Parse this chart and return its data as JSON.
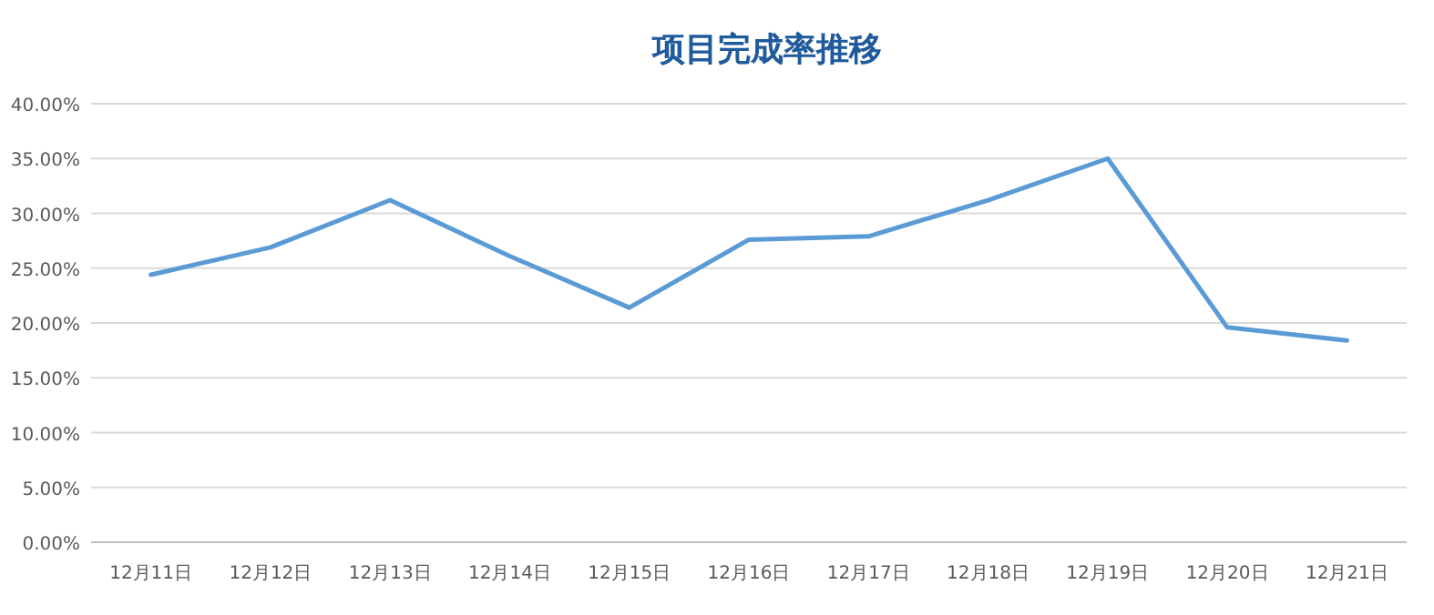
{
  "chart_data": {
    "type": "line",
    "title": "项目完成率推移",
    "categories": [
      "12月11日",
      "12月12日",
      "12月13日",
      "12月14日",
      "12月15日",
      "12月16日",
      "12月17日",
      "12月18日",
      "12月19日",
      "12月20日",
      "12月21日"
    ],
    "series": [
      {
        "color": "#5b9bd5",
        "values": [
          24.4,
          26.9,
          31.2,
          26.1,
          21.4,
          27.6,
          27.9,
          31.2,
          35.0,
          19.6,
          18.4
        ]
      }
    ],
    "ylim": [
      0,
      40
    ],
    "yticks": [
      {
        "value": 0,
        "label": "0.00%"
      },
      {
        "value": 5,
        "label": "5.00%"
      },
      {
        "value": 10,
        "label": "10.00%"
      },
      {
        "value": 15,
        "label": "15.00%"
      },
      {
        "value": 20,
        "label": "20.00%"
      },
      {
        "value": 25,
        "label": "25.00%"
      },
      {
        "value": 30,
        "label": "30.00%"
      },
      {
        "value": 35,
        "label": "35.00%"
      },
      {
        "value": 40,
        "label": "40.00%"
      }
    ],
    "grid": "y",
    "marker": "none",
    "line_style": "solid"
  }
}
